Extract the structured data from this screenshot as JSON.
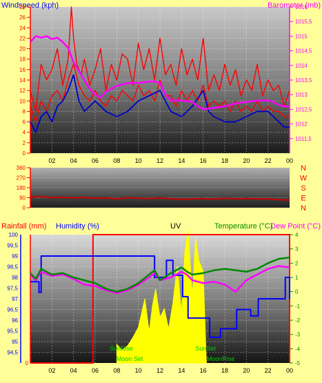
{
  "colors": {
    "background": "#ffff99",
    "wind_speed": "#ff0000",
    "wind_gust": "#ff0000",
    "wind_avg": "#0000cc",
    "barometer": "#ff00ff",
    "wind_dir": "#cc0000",
    "temperature": "#008800",
    "dew_point": "#ff00ff",
    "humidity": "#0000ff",
    "uv": "#ffff00",
    "rainfall": "#ff0000",
    "sun_moon": "#00cc00",
    "axis_labels": "#0000ff",
    "compass": "#ff0000"
  },
  "chart_data": [
    {
      "type": "line",
      "title": "",
      "left_axis_label": "Windspeed (kph)",
      "right_axis_label": "Barometer (mb)",
      "x_ticks": [
        "02",
        "04",
        "06",
        "08",
        "10",
        "12",
        "14",
        "16",
        "18",
        "20",
        "22",
        "00"
      ],
      "xlim": [
        0,
        24
      ],
      "ylim_left": [
        0,
        28
      ],
      "left_ticks": [
        "0",
        "2",
        "4",
        "6",
        "8",
        "10",
        "12",
        "14",
        "16",
        "18",
        "20",
        "22",
        "24",
        "26",
        "28"
      ],
      "ylim_right": [
        1011,
        1016
      ],
      "right_ticks": [
        "1011,5",
        "1012",
        "1012,5",
        "1013",
        "1013,5",
        "1014",
        "1014,5",
        "1015",
        "1015,5",
        "1016"
      ],
      "grid": true,
      "series": [
        {
          "key": "barometer",
          "axis": "right",
          "x": [
            0,
            0.5,
            1,
            1.5,
            2,
            2.5,
            3,
            3.5,
            4,
            4.5,
            5,
            5.5,
            6,
            6.5,
            7,
            8,
            9,
            10,
            11,
            11.5,
            12,
            12.5,
            13,
            14,
            15,
            15.5,
            16,
            17,
            18,
            19,
            20,
            21,
            22,
            22.5,
            23,
            23.5,
            24
          ],
          "y": [
            1014.8,
            1015.0,
            1014.95,
            1015.0,
            1014.9,
            1014.95,
            1014.8,
            1014.6,
            1014.1,
            1013.8,
            1013.5,
            1013.2,
            1013.0,
            1012.9,
            1013.1,
            1013.3,
            1013.4,
            1013.4,
            1013.45,
            1013.45,
            1013.4,
            1013.0,
            1012.8,
            1012.8,
            1012.75,
            1012.6,
            1012.5,
            1012.55,
            1012.6,
            1012.7,
            1012.75,
            1012.8,
            1012.8,
            1012.75,
            1012.65,
            1012.6,
            1012.6
          ]
        },
        {
          "key": "wind_avg",
          "axis": "left",
          "x": [
            0,
            0.5,
            1,
            1.5,
            2,
            2.5,
            3,
            3.5,
            4,
            4.5,
            5,
            5.5,
            6,
            7,
            8,
            9,
            10,
            11,
            12,
            12.5,
            13,
            14,
            15,
            16,
            16.5,
            17,
            18,
            19,
            20,
            21,
            22,
            22.5,
            23,
            23.5,
            24
          ],
          "y": [
            6,
            4,
            7,
            8,
            6,
            9,
            10,
            12,
            15,
            10,
            8,
            9,
            10,
            8,
            7,
            8,
            10,
            11,
            12,
            10,
            8,
            7,
            9,
            12,
            8,
            7,
            6,
            6,
            7,
            8,
            8,
            7,
            6,
            5,
            5
          ]
        },
        {
          "key": "wind_gust",
          "axis": "left",
          "x": [
            0,
            0.5,
            1,
            1.5,
            2,
            2.5,
            3,
            3.5,
            3.8,
            4,
            4.3,
            4.7,
            5,
            5.5,
            6,
            6.5,
            7,
            7.5,
            8,
            8.5,
            9,
            9.5,
            10,
            10.5,
            11,
            11.5,
            12,
            12.5,
            13,
            13.5,
            14,
            14.5,
            15,
            15.5,
            16,
            16.5,
            17,
            17.5,
            18,
            18.5,
            19,
            19.5,
            20,
            20.5,
            21,
            21.5,
            22,
            22.5,
            23,
            23.5,
            24
          ],
          "y": [
            12,
            8,
            17,
            14,
            16,
            20,
            13,
            18,
            28,
            22,
            17,
            15,
            18,
            13,
            16,
            20,
            12,
            17,
            14,
            19,
            18,
            13,
            21,
            16,
            20,
            14,
            22,
            15,
            17,
            13,
            20,
            15,
            18,
            14,
            22,
            12,
            15,
            12,
            17,
            13,
            16,
            11,
            14,
            12,
            17,
            11,
            14,
            12,
            13,
            9,
            12
          ]
        },
        {
          "key": "wind_speed",
          "axis": "left",
          "x": [
            0,
            0.5,
            1,
            1.5,
            2,
            2.5,
            3,
            3.5,
            4,
            4.5,
            5,
            5.5,
            6,
            6.5,
            7,
            7.5,
            8,
            8.5,
            9,
            9.5,
            10,
            10.5,
            11,
            11.5,
            12,
            12.5,
            13,
            13.5,
            14,
            14.5,
            15,
            15.5,
            16,
            16.5,
            17,
            17.5,
            18,
            18.5,
            19,
            19.5,
            20,
            20.5,
            21,
            21.5,
            22,
            22.5,
            23,
            23.5,
            24
          ],
          "y": [
            9,
            6,
            10,
            8,
            11,
            12,
            10,
            14,
            17,
            13,
            11,
            10,
            12,
            10,
            9,
            11,
            10,
            12,
            11,
            10,
            13,
            11,
            12,
            10,
            14,
            11,
            11,
            9,
            12,
            10,
            12,
            10,
            13,
            9,
            10,
            9,
            10,
            8,
            10,
            8,
            9,
            8,
            10,
            8,
            9,
            8,
            8,
            7,
            7
          ]
        }
      ]
    },
    {
      "type": "line",
      "title": "",
      "ylim": [
        0,
        360
      ],
      "left_ticks": [
        "0",
        "90",
        "180",
        "270",
        "360"
      ],
      "compass": [
        "N",
        "W",
        "S",
        "E",
        "N"
      ],
      "xlim": [
        0,
        24
      ],
      "grid": true,
      "series": [
        {
          "key": "wind_dir",
          "x": [
            0,
            1,
            2,
            3,
            4,
            5,
            6,
            7,
            8,
            9,
            10,
            11,
            12,
            13,
            14,
            15,
            16,
            17,
            18,
            19,
            20,
            21,
            22,
            23,
            24
          ],
          "y": [
            95,
            100,
            90,
            95,
            88,
            92,
            85,
            88,
            80,
            90,
            85,
            82,
            88,
            80,
            75,
            78,
            82,
            76,
            85,
            80,
            82,
            78,
            80,
            72,
            70
          ]
        }
      ]
    },
    {
      "type": "line",
      "title": "",
      "labels": {
        "rainfall": "Rainfall (mm)",
        "humidity": "Humidity (%)",
        "uv": "UV",
        "temperature": "Temperature (°C)",
        "dew_point": "Dew Point (°C)"
      },
      "x_ticks": [
        "02",
        "04",
        "06",
        "08",
        "10",
        "12",
        "14",
        "16",
        "18",
        "20",
        "22",
        "00"
      ],
      "xlim": [
        0,
        24
      ],
      "ylim_humidity": [
        94,
        100
      ],
      "humidity_ticks": [
        "94,5",
        "95",
        "95,5",
        "96",
        "96,5",
        "97",
        "97,5",
        "98",
        "98,5",
        "99",
        "99,5",
        "100"
      ],
      "rain_ticks": [
        "0"
      ],
      "ylim_temp": [
        -5,
        4
      ],
      "temp_ticks": [
        "-5",
        "-4",
        "-3",
        "-2",
        "-1",
        "0",
        "1",
        "2",
        "3",
        "4"
      ],
      "grid": true,
      "annotations": [
        "SunRise",
        "SunSet",
        "Moon Set",
        "MoonRise"
      ],
      "series": [
        {
          "key": "uv",
          "axis": "temp",
          "x": [
            8.0,
            8.5,
            9.0,
            9.5,
            10.0,
            10.3,
            10.6,
            11.0,
            11.3,
            11.6,
            12.0,
            12.4,
            12.8,
            13.2,
            13.6,
            14.0,
            14.3,
            14.6,
            15.0,
            15.3,
            15.6,
            16.0,
            16.3
          ],
          "y": [
            -3.7,
            -4.1,
            -3.8,
            -3.2,
            -2.5,
            -1.5,
            -0.5,
            -2.8,
            -1.0,
            0.2,
            -1.8,
            -1.2,
            -2.6,
            -0.8,
            1.8,
            -1.5,
            2.8,
            4.3,
            -0.3,
            3.8,
            2.2,
            1.4,
            -5
          ]
        },
        {
          "key": "temperature",
          "axis": "temp",
          "x": [
            0,
            0.5,
            1,
            2,
            3,
            4,
            5,
            6,
            7,
            8,
            9,
            10,
            11,
            11.5,
            12,
            13,
            14,
            14.5,
            15,
            16,
            17,
            18,
            19,
            20,
            21,
            22,
            23,
            24
          ],
          "y": [
            1.3,
            0.9,
            1.6,
            1.2,
            1.3,
            1.0,
            0.8,
            0.6,
            0.2,
            0.0,
            0.2,
            0.6,
            1.2,
            1.5,
            0.8,
            1.3,
            1.7,
            1.4,
            1.2,
            1.3,
            1.5,
            1.6,
            1.5,
            1.4,
            1.6,
            2.0,
            2.3,
            2.4
          ]
        },
        {
          "key": "dew_point",
          "axis": "temp",
          "x": [
            0,
            0.5,
            1,
            2,
            3,
            4,
            5,
            6,
            7,
            8,
            9,
            10,
            11,
            11.5,
            12,
            13,
            14,
            14.5,
            15,
            16,
            17,
            18,
            19,
            20,
            21,
            22,
            23,
            24
          ],
          "y": [
            1.2,
            0.8,
            1.4,
            1.1,
            1.2,
            0.9,
            0.5,
            0.4,
            0.1,
            -0.1,
            0.1,
            0.5,
            1.0,
            1.3,
            0.8,
            1.0,
            1.4,
            1.2,
            0.8,
            0.6,
            0.7,
            0.5,
            0.0,
            0.8,
            1.2,
            1.6,
            1.8,
            1.7
          ]
        },
        {
          "key": "humidity",
          "axis": "humidity",
          "step": true,
          "x": [
            0,
            0.5,
            0.8,
            1.0,
            11.4,
            11.5,
            12.5,
            12.6,
            13.1,
            13.2,
            14.0,
            14.1,
            14.5,
            14.6,
            16.5,
            16.6,
            17.5,
            17.6,
            19.0,
            19.1,
            20.3,
            20.4,
            21.0,
            21.1,
            23.5,
            23.6,
            24
          ],
          "y": [
            97.8,
            97.8,
            97.3,
            99.0,
            99.0,
            98.0,
            98.0,
            98.8,
            98.8,
            98.1,
            98.1,
            97.1,
            97.1,
            96.1,
            96.1,
            95.2,
            95.2,
            95.6,
            95.6,
            96.5,
            96.5,
            96.2,
            96.2,
            97.0,
            97.0,
            98.0,
            97.0
          ]
        },
        {
          "key": "rainfall",
          "axis": "rain",
          "segments": [
            [
              0,
              0
            ],
            [
              5.8,
              0
            ],
            [
              5.8,
              100
            ],
            [
              24,
              100
            ],
            [
              24,
              0
            ]
          ]
        }
      ]
    }
  ]
}
